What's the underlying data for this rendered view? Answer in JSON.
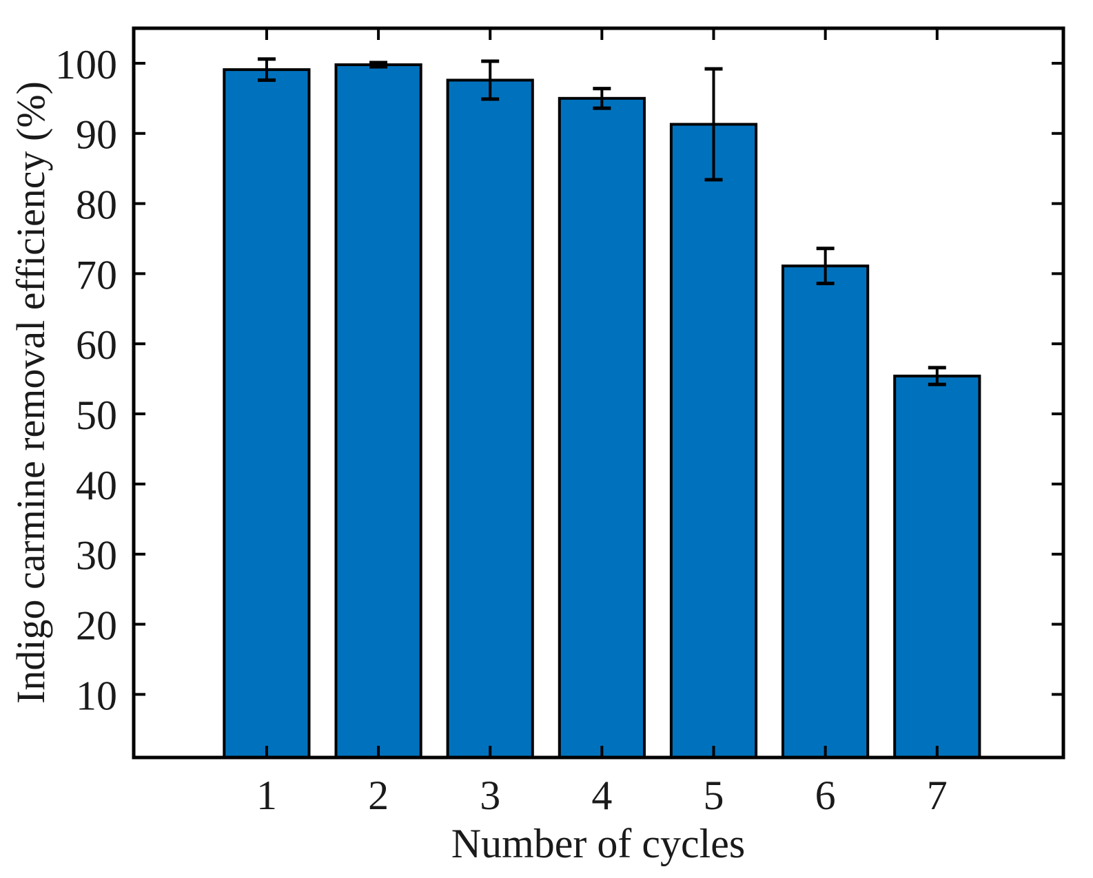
{
  "chart_data": {
    "type": "bar",
    "xlabel": "Number of cycles",
    "ylabel": "Indigo carmine removal efficiency (%)",
    "categories": [
      "1",
      "2",
      "3",
      "4",
      "5",
      "6",
      "7"
    ],
    "values": [
      99.1,
      99.8,
      97.6,
      95.0,
      91.3,
      71.1,
      55.4
    ],
    "errors": [
      1.5,
      0.3,
      2.7,
      1.4,
      7.9,
      2.5,
      1.2
    ],
    "yticks": [
      10,
      20,
      30,
      40,
      50,
      60,
      70,
      80,
      90,
      100
    ],
    "ylim": [
      1,
      105
    ],
    "xlim": [
      -0.19,
      8.13
    ],
    "bar_width": 0.76,
    "grid": false,
    "tick_direction": "in",
    "box": true,
    "colors": {
      "bar_fill": "#0072BD",
      "bar_edge": "#000000",
      "error_bar": "#000000",
      "axis": "#000000",
      "text": "#1a1a1a",
      "background": "#ffffff"
    }
  }
}
